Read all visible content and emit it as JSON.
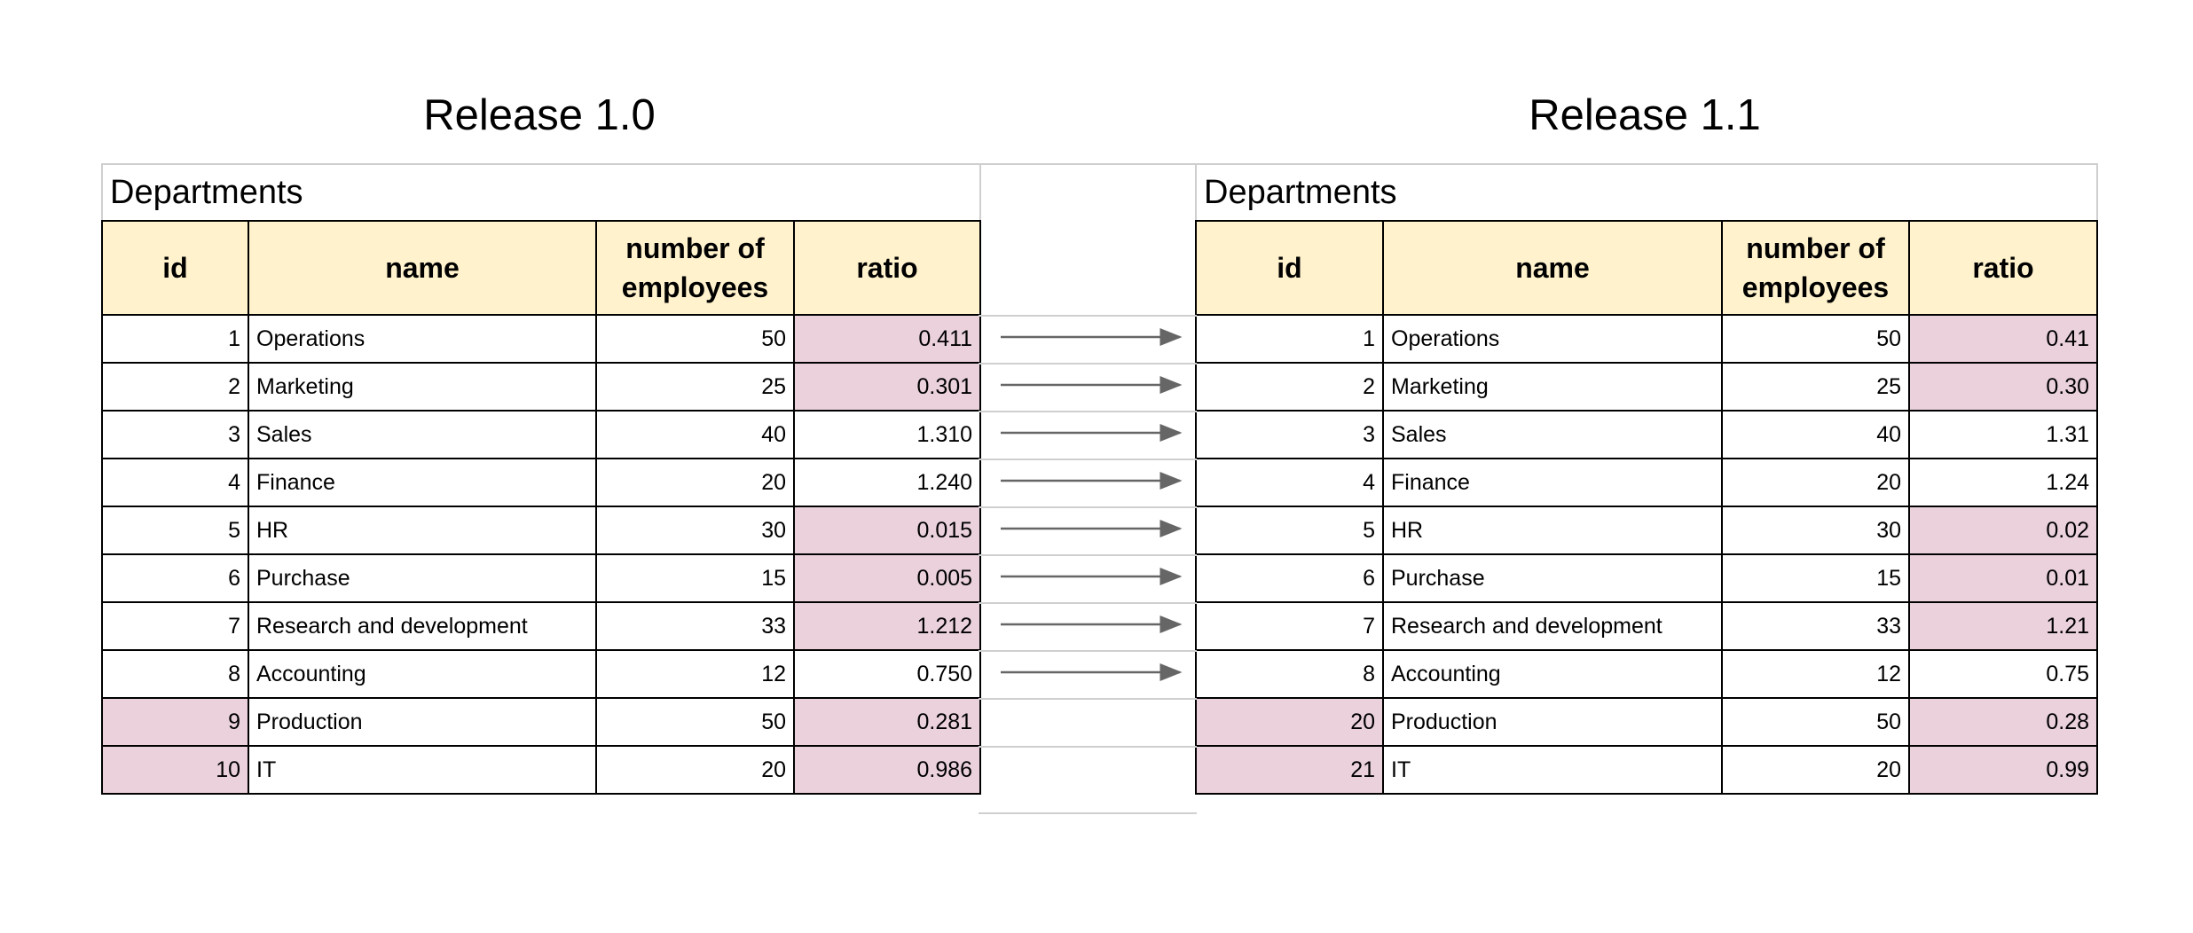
{
  "left": {
    "release_title": "Release 1.0",
    "table_caption": "Departments",
    "headers": {
      "id": "id",
      "name": "name",
      "employees": "number of employees",
      "ratio": "ratio"
    },
    "rows": [
      {
        "id": "1",
        "name": "Operations",
        "employees": "50",
        "ratio": "0.411",
        "id_hl": false,
        "ratio_hl": true
      },
      {
        "id": "2",
        "name": "Marketing",
        "employees": "25",
        "ratio": "0.301",
        "id_hl": false,
        "ratio_hl": true
      },
      {
        "id": "3",
        "name": "Sales",
        "employees": "40",
        "ratio": "1.310",
        "id_hl": false,
        "ratio_hl": false
      },
      {
        "id": "4",
        "name": "Finance",
        "employees": "20",
        "ratio": "1.240",
        "id_hl": false,
        "ratio_hl": false
      },
      {
        "id": "5",
        "name": "HR",
        "employees": "30",
        "ratio": "0.015",
        "id_hl": false,
        "ratio_hl": true
      },
      {
        "id": "6",
        "name": "Purchase",
        "employees": "15",
        "ratio": "0.005",
        "id_hl": false,
        "ratio_hl": true
      },
      {
        "id": "7",
        "name": "Research and development",
        "employees": "33",
        "ratio": "1.212",
        "id_hl": false,
        "ratio_hl": true
      },
      {
        "id": "8",
        "name": "Accounting",
        "employees": "12",
        "ratio": "0.750",
        "id_hl": false,
        "ratio_hl": false
      },
      {
        "id": "9",
        "name": "Production",
        "employees": "50",
        "ratio": "0.281",
        "id_hl": true,
        "ratio_hl": true
      },
      {
        "id": "10",
        "name": "IT",
        "employees": "20",
        "ratio": "0.986",
        "id_hl": true,
        "ratio_hl": true
      }
    ]
  },
  "right": {
    "release_title": "Release 1.1",
    "table_caption": "Departments",
    "headers": {
      "id": "id",
      "name": "name",
      "employees": "number of employees",
      "ratio": "ratio"
    },
    "rows": [
      {
        "id": "1",
        "name": "Operations",
        "employees": "50",
        "ratio": "0.41",
        "id_hl": false,
        "ratio_hl": true
      },
      {
        "id": "2",
        "name": "Marketing",
        "employees": "25",
        "ratio": "0.30",
        "id_hl": false,
        "ratio_hl": true
      },
      {
        "id": "3",
        "name": "Sales",
        "employees": "40",
        "ratio": "1.31",
        "id_hl": false,
        "ratio_hl": false
      },
      {
        "id": "4",
        "name": "Finance",
        "employees": "20",
        "ratio": "1.24",
        "id_hl": false,
        "ratio_hl": false
      },
      {
        "id": "5",
        "name": "HR",
        "employees": "30",
        "ratio": "0.02",
        "id_hl": false,
        "ratio_hl": true
      },
      {
        "id": "6",
        "name": "Purchase",
        "employees": "15",
        "ratio": "0.01",
        "id_hl": false,
        "ratio_hl": true
      },
      {
        "id": "7",
        "name": "Research and development",
        "employees": "33",
        "ratio": "1.21",
        "id_hl": false,
        "ratio_hl": true
      },
      {
        "id": "8",
        "name": "Accounting",
        "employees": "12",
        "ratio": "0.75",
        "id_hl": false,
        "ratio_hl": false
      },
      {
        "id": "20",
        "name": "Production",
        "employees": "50",
        "ratio": "0.28",
        "id_hl": true,
        "ratio_hl": true
      },
      {
        "id": "21",
        "name": "IT",
        "employees": "20",
        "ratio": "0.99",
        "id_hl": true,
        "ratio_hl": true
      }
    ]
  },
  "colors": {
    "header_fill": "#fff2cc",
    "highlight_fill": "#ead1dc",
    "arrow": "#666666"
  },
  "arrow_icon": "right-arrow-icon",
  "arrow_count": 8
}
